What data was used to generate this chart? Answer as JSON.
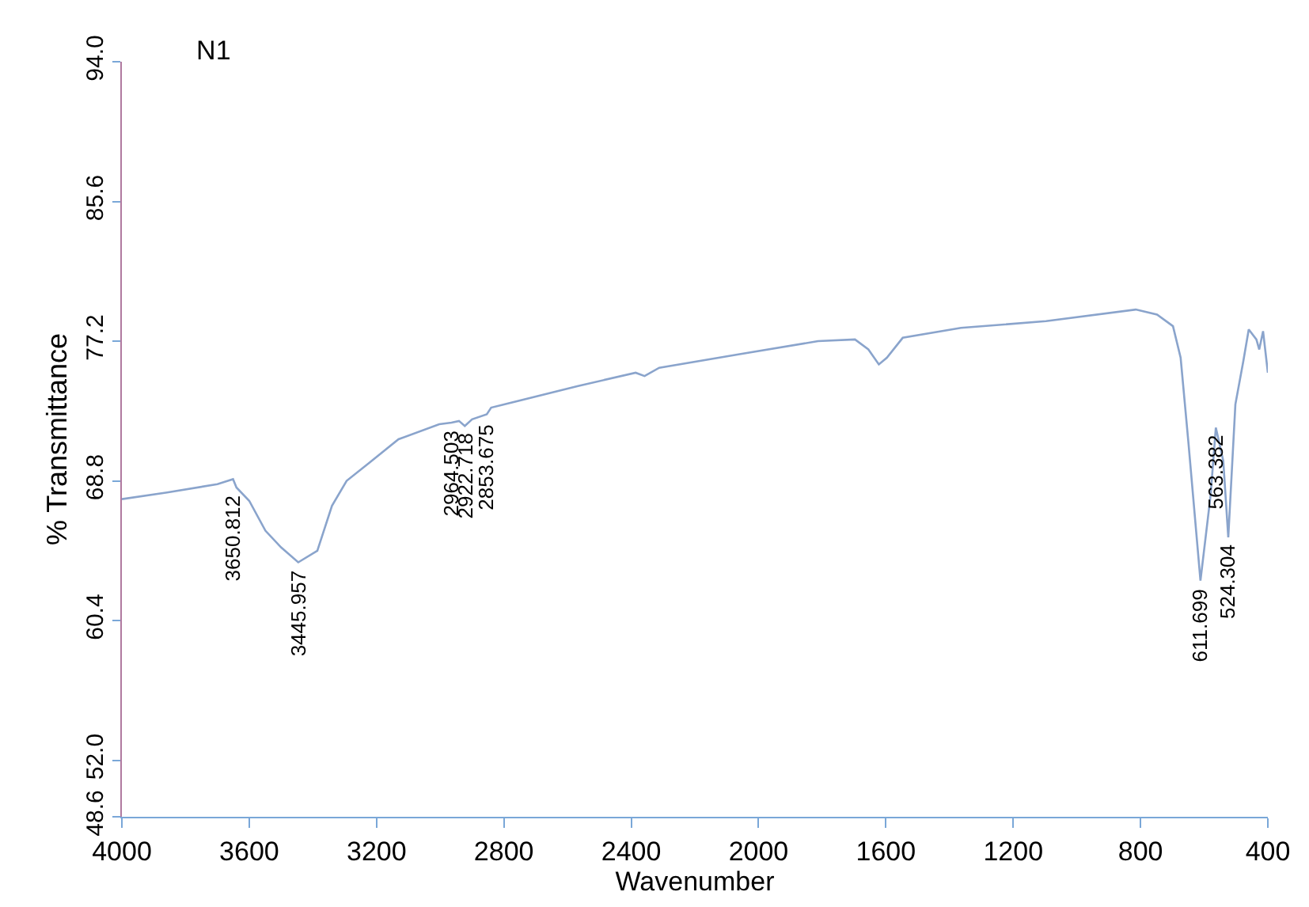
{
  "chart_data": {
    "type": "line",
    "title": "N1",
    "xlabel": "Wavenumber",
    "ylabel": "% Transmittance",
    "xlim": [
      4000,
      400
    ],
    "xticks": [
      4000,
      3600,
      3200,
      2800,
      2400,
      2000,
      1600,
      1200,
      800,
      400
    ],
    "ylim": [
      48.6,
      94.0
    ],
    "yticks": [
      48.6,
      {
        "value": 52,
        "label": "52.0"
      },
      60.4,
      68.8,
      77.2,
      85.6,
      {
        "value": 94,
        "label": "94.0"
      }
    ],
    "legend": false,
    "marker": "none",
    "line_style": "solid",
    "series": [
      {
        "color": "#8aa4cc",
        "x": [
          4000,
          3858,
          3700,
          3667,
          3650.812,
          3640,
          3600,
          3549,
          3500,
          3445.957,
          3386,
          3340,
          3294,
          3222,
          3131,
          3003,
          2964.503,
          2941,
          2922.718,
          2900,
          2853.675,
          2840,
          2567,
          2386,
          2358,
          2312,
          2063,
          1813,
          1697,
          1655,
          1622,
          1597,
          1547,
          1364,
          1097,
          815,
          748,
          698,
          674,
          649,
          611.699,
          580,
          563.382,
          540,
          524.304,
          502,
          477,
          460,
          436,
          427,
          415,
          400
        ],
        "values": [
          67.7,
          68.1,
          68.6,
          68.8,
          68.9,
          68.4,
          67.6,
          65.8,
          64.8,
          63.9,
          64.6,
          67.3,
          68.8,
          69.9,
          71.3,
          72.2,
          72.3,
          72.4,
          72.1,
          72.5,
          72.8,
          73.2,
          74.5,
          75.3,
          75.1,
          75.6,
          76.4,
          77.2,
          77.3,
          76.7,
          75.8,
          76.2,
          77.4,
          78.0,
          78.4,
          79.1,
          78.8,
          78.1,
          76.2,
          71.0,
          62.8,
          67.9,
          72.0,
          70.0,
          65.4,
          73.4,
          76.0,
          77.9,
          77.3,
          76.7,
          77.8,
          75.3
        ]
      }
    ],
    "annotations": [
      {
        "text": "3650.812",
        "x": 3650.812,
        "y": 68.4
      },
      {
        "text": "3445.957",
        "x": 3445.957,
        "y": 63.9
      },
      {
        "text": "2964.503",
        "x": 2964.503,
        "y": 72.3
      },
      {
        "text": "2922.718",
        "x": 2922.718,
        "y": 72.1
      },
      {
        "text": "2853.675",
        "x": 2853.675,
        "y": 72.6
      },
      {
        "text": "611.699",
        "x": 611.699,
        "y": 62.8
      },
      {
        "text": "563.382",
        "x": 563.382,
        "y": 72.0
      },
      {
        "text": "524.304",
        "x": 524.304,
        "y": 65.4
      }
    ]
  }
}
